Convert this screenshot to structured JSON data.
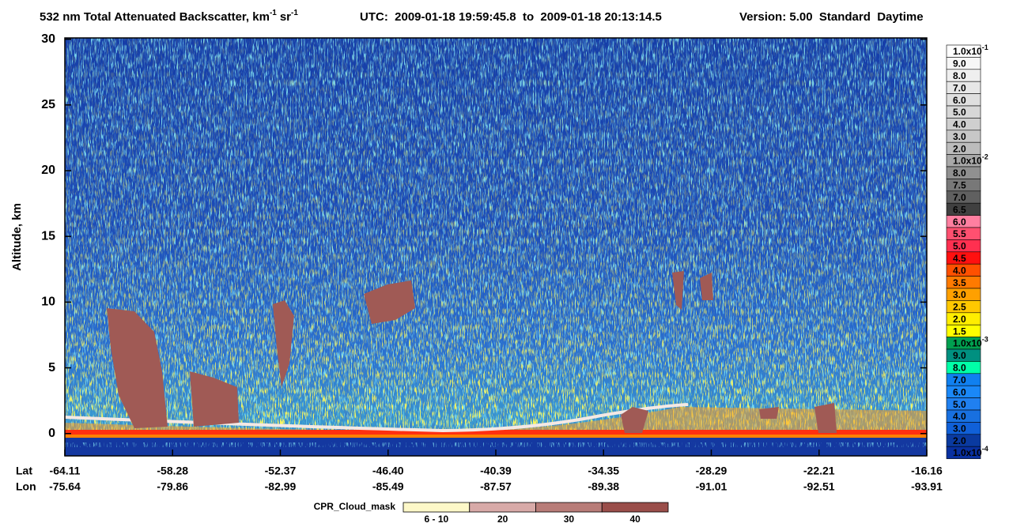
{
  "chart_data": {
    "type": "curtain",
    "title": {
      "main": "532 nm Total Attenuated Backscatter, km",
      "sup1": "-1",
      "unit2": "sr",
      "sup2": "-1",
      "utc": "UTC:  2009-01-18 19:59:45.8  to  2009-01-18 20:13:14.5",
      "version": "Version: 5.00  Standard  Daytime"
    },
    "ylabel": "Altitude, km",
    "ylim": [
      -1.7,
      30.1
    ],
    "yticks": [
      0,
      5,
      10,
      15,
      20,
      25,
      30
    ],
    "x_rows": {
      "lat_label": "Lat",
      "lon_label": "Lon",
      "lat": [
        "-64.11",
        "-58.28",
        "-52.37",
        "-46.40",
        "-40.39",
        "-34.35",
        "-28.29",
        "-22.21",
        "-16.16"
      ],
      "lon": [
        "-75.64",
        "-79.86",
        "-82.99",
        "-85.49",
        "-87.57",
        "-89.38",
        "-91.01",
        "-92.51",
        "-93.91"
      ]
    },
    "colorbar": {
      "labels": [
        {
          "text": "1.0x10",
          "sup": "-1"
        },
        "9.0",
        "8.0",
        "7.0",
        "6.0",
        "5.0",
        "4.0",
        "3.0",
        "2.0",
        {
          "text": "1.0x10",
          "sup": "-2"
        },
        "8.0",
        "7.5",
        "7.0",
        "6.5",
        "6.0",
        "5.5",
        "5.0",
        "4.5",
        "4.0",
        "3.5",
        "3.0",
        "2.5",
        "2.0",
        "1.5",
        {
          "text": "1.0x10",
          "sup": "-3"
        },
        "9.0",
        "8.0",
        "7.0",
        "6.0",
        "5.0",
        "4.0",
        "3.0",
        "2.0",
        {
          "text": "1.0x10",
          "sup": "-4"
        }
      ],
      "colors": [
        "#ffffff",
        "#f7f7f7",
        "#efefef",
        "#e7e7e7",
        "#dfdfdf",
        "#d7d7d7",
        "#cfcfcf",
        "#c7c7c7",
        "#bcbcbc",
        "#a8a8a8",
        "#909090",
        "#787878",
        "#606060",
        "#404040",
        "#ff7fa0",
        "#ff5070",
        "#ff3050",
        "#ff1010",
        "#ff5000",
        "#ff7a00",
        "#ffa000",
        "#ffc800",
        "#ffee00",
        "#ffff00",
        "#00a050",
        "#009080",
        "#00ffa8",
        "#1080f0",
        "#1a88f8",
        "#2080f0",
        "#1870e0",
        "#1060d8",
        "#0a3aa0",
        "#0830a0"
      ]
    },
    "cloud_mask": {
      "title": "CPR_Cloud_mask",
      "labels": [
        "6 - 10",
        "20",
        "30",
        "40"
      ],
      "colors": [
        "#fdf8c8",
        "#d8aaa8",
        "#b87c78",
        "#9a4e4a"
      ]
    }
  }
}
